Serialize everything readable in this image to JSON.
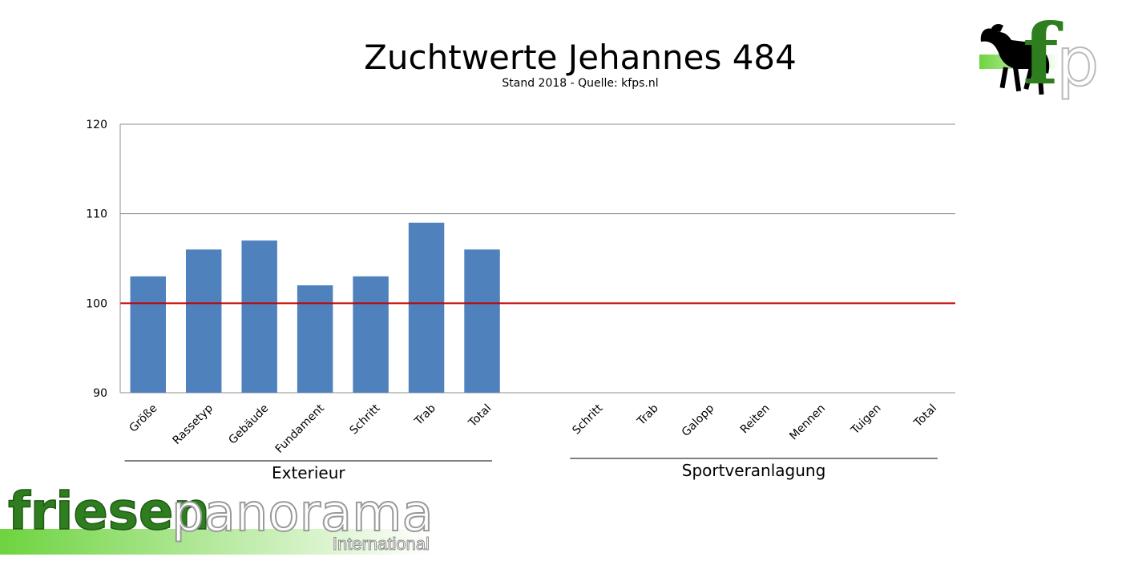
{
  "chart_data": {
    "type": "bar",
    "title": "Zuchtwerte Jehannes 484",
    "subtitle": "Stand 2018 - Quelle: kfps.nl",
    "ylim": [
      90,
      120
    ],
    "yticks": [
      90,
      100,
      110,
      120
    ],
    "reference_line": {
      "value": 100,
      "color": "#c00000"
    },
    "bar_color": "#4f81bd",
    "grid": true,
    "groups": [
      {
        "name": "Exterieur",
        "categories": [
          "Größe",
          "Rassetyp",
          "Gebäude",
          "Fundament",
          "Schritt",
          "Trab",
          "Total"
        ],
        "values": [
          103,
          106,
          107,
          102,
          103,
          109,
          106
        ]
      },
      {
        "name": "Sportveranlagung",
        "categories": [
          "Schritt",
          "Trab",
          "Galopp",
          "Reiten",
          "Mennen",
          "Tuigen",
          "Total"
        ],
        "values": [
          null,
          null,
          null,
          null,
          null,
          null,
          null
        ]
      }
    ]
  },
  "branding": {
    "logo_word_1": "friesen",
    "logo_word_2": "panorama",
    "logo_sub": "International",
    "logo_letters": "fp",
    "logo_icon": "horse-icon",
    "green": "#2e7d1e"
  }
}
